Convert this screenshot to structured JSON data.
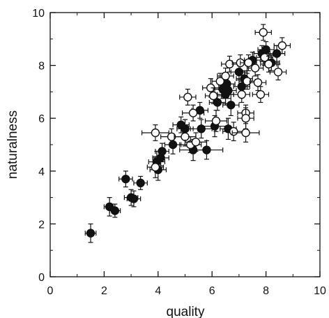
{
  "chart_data": {
    "type": "scatter",
    "xlabel": "quality",
    "ylabel": "naturalness",
    "xlim": [
      0,
      10
    ],
    "ylim": [
      0,
      10
    ],
    "x_ticks": [
      "0",
      "2",
      "4",
      "6",
      "8",
      "10"
    ],
    "y_ticks": [
      "0",
      "2",
      "4",
      "6",
      "8",
      "10"
    ],
    "grid": false,
    "legend": "none",
    "colors": {
      "filled": "#111111",
      "open": "#ffffff",
      "stroke": "#111111"
    },
    "series": [
      {
        "marker": "filled-circle",
        "points": [
          {
            "x": 1.5,
            "y": 1.65,
            "xerr": 0.2,
            "yerr": 0.35
          },
          {
            "x": 2.2,
            "y": 2.65,
            "xerr": 0.2,
            "yerr": 0.35
          },
          {
            "x": 2.4,
            "y": 2.5,
            "xerr": 0.2,
            "yerr": 0.25
          },
          {
            "x": 2.8,
            "y": 3.7,
            "xerr": 0.25,
            "yerr": 0.3
          },
          {
            "x": 3.0,
            "y": 3.0,
            "xerr": 0.25,
            "yerr": 0.3
          },
          {
            "x": 3.1,
            "y": 2.95,
            "xerr": 0.25,
            "yerr": 0.3
          },
          {
            "x": 3.35,
            "y": 3.55,
            "xerr": 0.25,
            "yerr": 0.25
          },
          {
            "x": 3.95,
            "y": 4.35,
            "xerr": 0.3,
            "yerr": 0.4
          },
          {
            "x": 4.0,
            "y": 4.05,
            "xerr": 0.3,
            "yerr": 0.4
          },
          {
            "x": 4.1,
            "y": 4.5,
            "xerr": 0.3,
            "yerr": 0.3
          },
          {
            "x": 4.15,
            "y": 4.75,
            "xerr": 0.25,
            "yerr": 0.3
          },
          {
            "x": 4.55,
            "y": 5.0,
            "xerr": 0.3,
            "yerr": 0.35
          },
          {
            "x": 4.85,
            "y": 5.75,
            "xerr": 0.3,
            "yerr": 0.3
          },
          {
            "x": 5.0,
            "y": 5.6,
            "xerr": 0.3,
            "yerr": 0.35
          },
          {
            "x": 5.3,
            "y": 4.8,
            "xerr": 0.5,
            "yerr": 0.4
          },
          {
            "x": 5.55,
            "y": 6.3,
            "xerr": 0.3,
            "yerr": 0.3
          },
          {
            "x": 5.6,
            "y": 5.6,
            "xerr": 0.4,
            "yerr": 0.35
          },
          {
            "x": 5.8,
            "y": 4.8,
            "xerr": 0.6,
            "yerr": 0.35
          },
          {
            "x": 6.1,
            "y": 5.7,
            "xerr": 0.5,
            "yerr": 0.4
          },
          {
            "x": 6.2,
            "y": 6.6,
            "xerr": 0.3,
            "yerr": 0.3
          },
          {
            "x": 6.4,
            "y": 7.1,
            "xerr": 0.3,
            "yerr": 0.35
          },
          {
            "x": 6.5,
            "y": 6.9,
            "xerr": 0.3,
            "yerr": 0.35
          },
          {
            "x": 6.55,
            "y": 7.3,
            "xerr": 0.3,
            "yerr": 0.3
          },
          {
            "x": 6.6,
            "y": 7.05,
            "xerr": 0.3,
            "yerr": 0.3
          },
          {
            "x": 6.6,
            "y": 5.6,
            "xerr": 0.3,
            "yerr": 0.4
          },
          {
            "x": 6.7,
            "y": 6.5,
            "xerr": 0.3,
            "yerr": 0.4
          },
          {
            "x": 7.0,
            "y": 7.75,
            "xerr": 0.3,
            "yerr": 0.3
          },
          {
            "x": 7.1,
            "y": 7.2,
            "xerr": 0.3,
            "yerr": 0.3
          },
          {
            "x": 7.2,
            "y": 7.5,
            "xerr": 0.3,
            "yerr": 0.3
          },
          {
            "x": 7.5,
            "y": 8.2,
            "xerr": 0.3,
            "yerr": 0.3
          },
          {
            "x": 7.85,
            "y": 8.45,
            "xerr": 0.3,
            "yerr": 0.3
          },
          {
            "x": 8.0,
            "y": 8.6,
            "xerr": 0.3,
            "yerr": 0.3
          },
          {
            "x": 8.2,
            "y": 8.1,
            "xerr": 0.3,
            "yerr": 0.3
          },
          {
            "x": 8.4,
            "y": 8.45,
            "xerr": 0.3,
            "yerr": 0.3
          }
        ]
      },
      {
        "marker": "open-circle",
        "points": [
          {
            "x": 3.9,
            "y": 5.45,
            "xerr": 0.5,
            "yerr": 0.3
          },
          {
            "x": 3.9,
            "y": 4.15,
            "xerr": 0.3,
            "yerr": 0.4
          },
          {
            "x": 4.5,
            "y": 5.3,
            "xerr": 0.4,
            "yerr": 0.3
          },
          {
            "x": 5.0,
            "y": 5.3,
            "xerr": 0.4,
            "yerr": 0.35
          },
          {
            "x": 5.1,
            "y": 6.8,
            "xerr": 0.3,
            "yerr": 0.3
          },
          {
            "x": 5.2,
            "y": 5.0,
            "xerr": 0.4,
            "yerr": 0.3
          },
          {
            "x": 5.3,
            "y": 6.2,
            "xerr": 0.4,
            "yerr": 0.3
          },
          {
            "x": 5.4,
            "y": 5.1,
            "xerr": 0.4,
            "yerr": 0.35
          },
          {
            "x": 5.95,
            "y": 7.15,
            "xerr": 0.3,
            "yerr": 0.35
          },
          {
            "x": 6.05,
            "y": 6.85,
            "xerr": 0.3,
            "yerr": 0.3
          },
          {
            "x": 6.15,
            "y": 5.9,
            "xerr": 0.4,
            "yerr": 0.4
          },
          {
            "x": 6.3,
            "y": 7.4,
            "xerr": 0.3,
            "yerr": 0.3
          },
          {
            "x": 6.5,
            "y": 7.6,
            "xerr": 0.3,
            "yerr": 0.3
          },
          {
            "x": 6.65,
            "y": 8.05,
            "xerr": 0.3,
            "yerr": 0.3
          },
          {
            "x": 6.8,
            "y": 5.5,
            "xerr": 0.4,
            "yerr": 0.35
          },
          {
            "x": 7.05,
            "y": 8.1,
            "xerr": 0.3,
            "yerr": 0.3
          },
          {
            "x": 7.1,
            "y": 6.9,
            "xerr": 0.3,
            "yerr": 0.3
          },
          {
            "x": 7.25,
            "y": 6.2,
            "xerr": 0.3,
            "yerr": 0.3
          },
          {
            "x": 7.25,
            "y": 6.0,
            "xerr": 0.3,
            "yerr": 0.4
          },
          {
            "x": 7.25,
            "y": 5.45,
            "xerr": 0.5,
            "yerr": 0.35
          },
          {
            "x": 7.3,
            "y": 7.4,
            "xerr": 0.3,
            "yerr": 0.3
          },
          {
            "x": 7.35,
            "y": 8.1,
            "xerr": 0.3,
            "yerr": 0.3
          },
          {
            "x": 7.6,
            "y": 7.9,
            "xerr": 0.3,
            "yerr": 0.3
          },
          {
            "x": 7.7,
            "y": 7.35,
            "xerr": 0.3,
            "yerr": 0.3
          },
          {
            "x": 7.8,
            "y": 6.9,
            "xerr": 0.3,
            "yerr": 0.3
          },
          {
            "x": 7.9,
            "y": 9.25,
            "xerr": 0.3,
            "yerr": 0.3
          },
          {
            "x": 7.95,
            "y": 8.3,
            "xerr": 0.3,
            "yerr": 0.3
          },
          {
            "x": 8.1,
            "y": 8.05,
            "xerr": 0.3,
            "yerr": 0.3
          },
          {
            "x": 8.45,
            "y": 7.75,
            "xerr": 0.3,
            "yerr": 0.3
          },
          {
            "x": 8.6,
            "y": 8.75,
            "xerr": 0.3,
            "yerr": 0.3
          }
        ]
      }
    ]
  }
}
